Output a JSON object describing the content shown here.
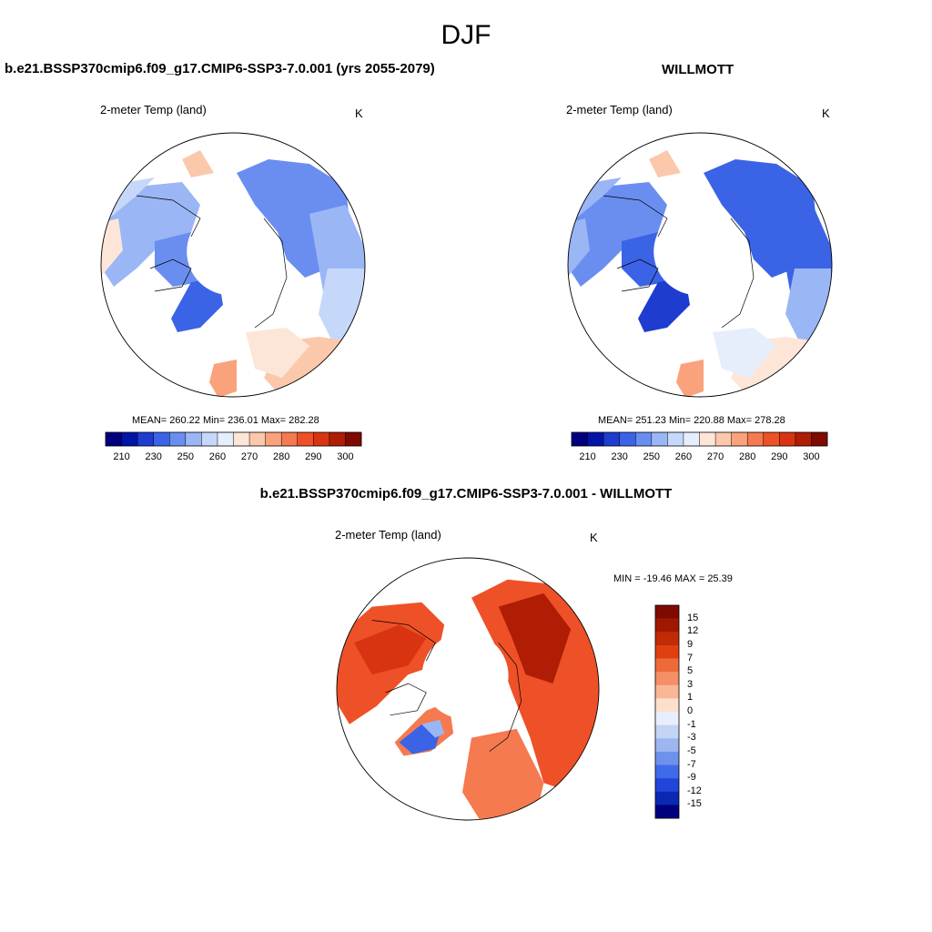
{
  "figure": {
    "title": "DJF",
    "left_title": "b.e21.BSSP370cmip6.f09_g17.CMIP6-SSP3-7.0.001 (yrs 2055-2079)",
    "right_title": "WILLMOTT",
    "diff_title": "b.e21.BSSP370cmip6.f09_g17.CMIP6-SSP3-7.0.001 - WILLMOTT"
  },
  "panels": [
    {
      "variable": "2-meter Temp (land)",
      "units": "K",
      "stats": "MEAN= 260.22  Min= 236.01  Max= 282.28",
      "colorbar_ticks": [
        "210",
        "230",
        "250",
        "260",
        "270",
        "280",
        "290",
        "300"
      ]
    },
    {
      "variable": "2-meter Temp (land)",
      "units": "K",
      "stats": "MEAN= 251.23  Min= 220.88  Max= 278.28",
      "colorbar_ticks": [
        "210",
        "230",
        "250",
        "260",
        "270",
        "280",
        "290",
        "300"
      ]
    },
    {
      "variable": "2-meter Temp (land)",
      "units": "K",
      "stats": "MIN = -19.46 MAX =  25.39",
      "colorbar_ticks": [
        "15",
        "12",
        "9",
        "7",
        "5",
        "3",
        "1",
        "0",
        "-1",
        "-3",
        "-5",
        "-7",
        "-9",
        "-12",
        "-15"
      ]
    }
  ],
  "colors": {
    "abs_scale": [
      "#00007f",
      "#0015a6",
      "#1e3ccf",
      "#3b63e6",
      "#6a8ef0",
      "#9ab6f5",
      "#c6d8fa",
      "#e6eefc",
      "#fde6d8",
      "#fbc8ab",
      "#f9a27c",
      "#f57a4f",
      "#ee5127",
      "#d93412",
      "#b01d05",
      "#7f0a00"
    ],
    "diff_scale": [
      "#7f0a00",
      "#a01800",
      "#c12b05",
      "#e0400f",
      "#ef6a3b",
      "#f48f66",
      "#f9b796",
      "#fde0cc",
      "#e8eefb",
      "#c4d4f5",
      "#9db6f0",
      "#6e92ec",
      "#3f6bea",
      "#2045d8",
      "#0b28b5",
      "#00007f"
    ],
    "coast": "#000000"
  }
}
